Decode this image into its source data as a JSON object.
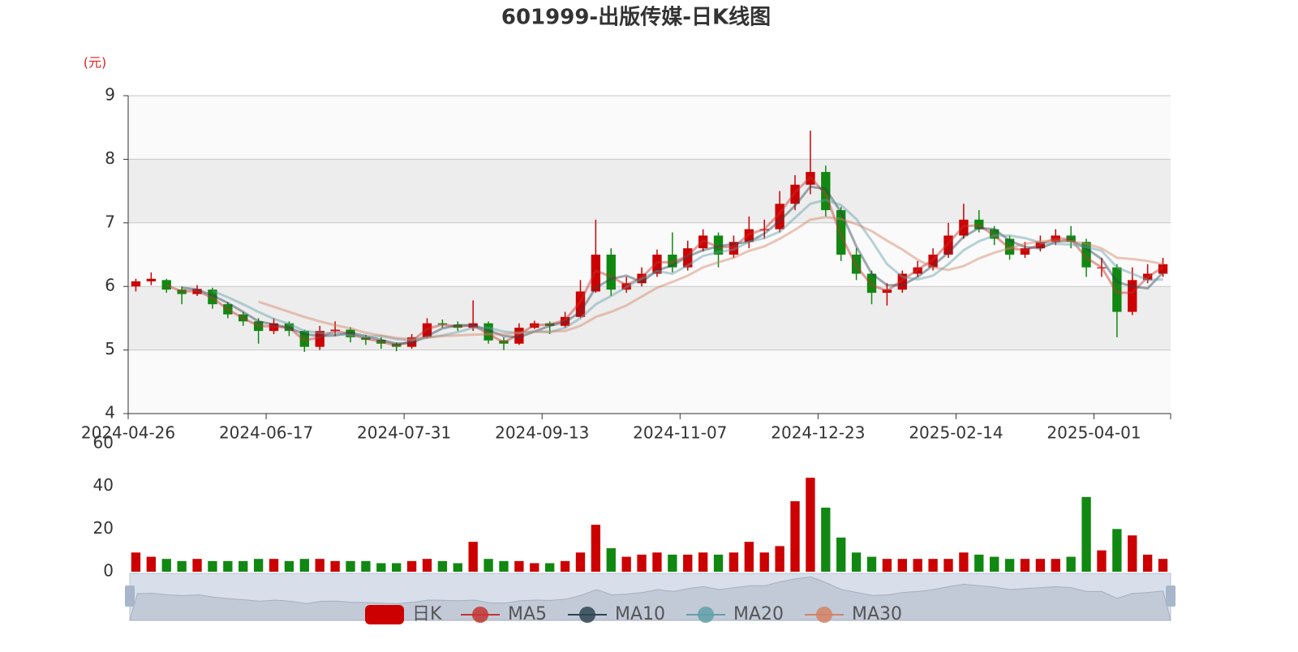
{
  "chart_data": {
    "type": "candlestick",
    "title": "601999-出版传媒-日K线图",
    "y_axis_name": "(元)",
    "candle_name": "日K",
    "up_color": "#cc0000",
    "down_color": "#118811",
    "ylim": [
      4,
      9
    ],
    "yticks": [
      4,
      5,
      6,
      7,
      8,
      9
    ],
    "categories": [
      "2024-04-26",
      null,
      null,
      null,
      null,
      null,
      null,
      null,
      null,
      "2024-06-17",
      null,
      null,
      null,
      null,
      null,
      null,
      null,
      null,
      "2024-07-31",
      null,
      null,
      null,
      null,
      null,
      null,
      null,
      null,
      "2024-09-13",
      null,
      null,
      null,
      null,
      null,
      null,
      null,
      null,
      "2024-11-07",
      null,
      null,
      null,
      null,
      null,
      null,
      null,
      null,
      "2024-12-23",
      null,
      null,
      null,
      null,
      null,
      null,
      null,
      null,
      "2025-02-14",
      null,
      null,
      null,
      null,
      null,
      null,
      null,
      null,
      "2025-04-01",
      null,
      null,
      null,
      null
    ],
    "ohlc": [
      [
        6.0,
        6.08,
        5.92,
        6.12
      ],
      [
        6.08,
        6.12,
        6.02,
        6.22
      ],
      [
        6.1,
        5.95,
        5.9,
        6.12
      ],
      [
        5.95,
        5.88,
        5.72,
        6.0
      ],
      [
        5.88,
        5.96,
        5.85,
        6.02
      ],
      [
        5.95,
        5.72,
        5.65,
        5.98
      ],
      [
        5.72,
        5.56,
        5.5,
        5.75
      ],
      [
        5.56,
        5.45,
        5.38,
        5.6
      ],
      [
        5.45,
        5.3,
        5.1,
        5.5
      ],
      [
        5.3,
        5.42,
        5.25,
        5.5
      ],
      [
        5.42,
        5.3,
        5.22,
        5.45
      ],
      [
        5.3,
        5.05,
        4.97,
        5.32
      ],
      [
        5.05,
        5.3,
        5.0,
        5.38
      ],
      [
        5.3,
        5.32,
        5.22,
        5.45
      ],
      [
        5.32,
        5.2,
        5.12,
        5.36
      ],
      [
        5.2,
        5.16,
        5.08,
        5.24
      ],
      [
        5.16,
        5.1,
        5.02,
        5.2
      ],
      [
        5.1,
        5.05,
        4.98,
        5.12
      ],
      [
        5.05,
        5.2,
        5.02,
        5.25
      ],
      [
        5.2,
        5.42,
        5.18,
        5.5
      ],
      [
        5.42,
        5.4,
        5.35,
        5.48
      ],
      [
        5.4,
        5.35,
        5.3,
        5.45
      ],
      [
        5.35,
        5.42,
        5.3,
        5.78
      ],
      [
        5.42,
        5.15,
        5.1,
        5.45
      ],
      [
        5.15,
        5.1,
        5.0,
        5.2
      ],
      [
        5.1,
        5.35,
        5.08,
        5.42
      ],
      [
        5.35,
        5.42,
        5.33,
        5.46
      ],
      [
        5.42,
        5.38,
        5.25,
        5.45
      ],
      [
        5.38,
        5.52,
        5.35,
        5.6
      ],
      [
        5.52,
        5.92,
        5.5,
        6.1
      ],
      [
        5.92,
        6.5,
        5.9,
        7.05
      ],
      [
        6.5,
        5.95,
        5.85,
        6.6
      ],
      [
        5.95,
        6.05,
        5.9,
        6.15
      ],
      [
        6.05,
        6.2,
        6.0,
        6.3
      ],
      [
        6.2,
        6.5,
        6.15,
        6.58
      ],
      [
        6.5,
        6.3,
        6.22,
        6.85
      ],
      [
        6.3,
        6.6,
        6.25,
        6.72
      ],
      [
        6.6,
        6.8,
        6.55,
        6.9
      ],
      [
        6.8,
        6.5,
        6.3,
        6.85
      ],
      [
        6.5,
        6.7,
        6.45,
        6.8
      ],
      [
        6.7,
        6.9,
        6.6,
        7.1
      ],
      [
        6.9,
        6.9,
        6.75,
        7.05
      ],
      [
        6.9,
        7.3,
        6.85,
        7.5
      ],
      [
        7.3,
        7.6,
        7.2,
        7.75
      ],
      [
        7.6,
        7.8,
        7.45,
        8.45
      ],
      [
        7.8,
        7.2,
        7.1,
        7.9
      ],
      [
        7.2,
        6.5,
        6.4,
        7.25
      ],
      [
        6.5,
        6.2,
        6.1,
        6.6
      ],
      [
        6.2,
        5.9,
        5.72,
        6.25
      ],
      [
        5.9,
        5.95,
        5.7,
        6.05
      ],
      [
        5.95,
        6.2,
        5.9,
        6.25
      ],
      [
        6.2,
        6.3,
        6.15,
        6.4
      ],
      [
        6.3,
        6.5,
        6.25,
        6.6
      ],
      [
        6.5,
        6.8,
        6.45,
        7.0
      ],
      [
        6.8,
        7.05,
        6.75,
        7.3
      ],
      [
        7.05,
        6.9,
        6.85,
        7.2
      ],
      [
        6.9,
        6.75,
        6.65,
        6.95
      ],
      [
        6.75,
        6.5,
        6.42,
        6.8
      ],
      [
        6.5,
        6.6,
        6.45,
        6.7
      ],
      [
        6.6,
        6.7,
        6.55,
        6.8
      ],
      [
        6.7,
        6.8,
        6.65,
        6.9
      ],
      [
        6.8,
        6.7,
        6.6,
        6.95
      ],
      [
        6.7,
        6.3,
        6.15,
        6.75
      ],
      [
        6.3,
        6.3,
        6.15,
        6.45
      ],
      [
        6.3,
        5.6,
        5.2,
        6.35
      ],
      [
        5.6,
        6.1,
        5.55,
        6.3
      ],
      [
        6.1,
        6.2,
        6.05,
        6.35
      ],
      [
        6.2,
        6.35,
        6.15,
        6.45
      ]
    ],
    "series": [
      {
        "name": "MA5",
        "color": "#c23531",
        "values": [
          null,
          null,
          6.02,
          5.92,
          5.93,
          5.82,
          5.64,
          5.5,
          5.38,
          5.37,
          5.35,
          5.15,
          5.2,
          5.3,
          5.25,
          5.18,
          5.13,
          5.07,
          5.14,
          5.33,
          5.4,
          5.37,
          5.39,
          5.25,
          5.12,
          5.25,
          5.39,
          5.4,
          5.47,
          5.76,
          6.25,
          6.15,
          6.02,
          6.14,
          6.38,
          6.38,
          6.48,
          6.72,
          6.62,
          6.62,
          6.82,
          6.9,
          7.15,
          7.48,
          7.72,
          7.45,
          6.8,
          6.32,
          6.02,
          5.93,
          6.1,
          6.26,
          6.42,
          6.68,
          6.95,
          6.96,
          6.8,
          6.6,
          6.57,
          6.66,
          6.76,
          6.74,
          6.45,
          6.3,
          5.9,
          5.9,
          6.15,
          6.3
        ]
      },
      {
        "name": "MA10",
        "color": "#2f4554",
        "values": [
          null,
          null,
          null,
          5.98,
          5.95,
          5.86,
          5.74,
          5.6,
          5.45,
          5.4,
          5.35,
          5.25,
          5.22,
          5.23,
          5.27,
          5.22,
          5.16,
          5.1,
          5.11,
          5.22,
          5.34,
          5.39,
          5.39,
          5.31,
          5.22,
          5.2,
          5.29,
          5.38,
          5.44,
          5.6,
          5.98,
          6.12,
          6.17,
          6.07,
          6.25,
          6.33,
          6.47,
          6.57,
          6.63,
          6.67,
          6.7,
          6.83,
          7.03,
          7.27,
          7.57,
          7.53,
          7.17,
          6.63,
          6.2,
          6.02,
          6.02,
          6.15,
          6.33,
          6.53,
          6.78,
          6.92,
          6.9,
          6.72,
          6.62,
          6.6,
          6.7,
          6.73,
          6.6,
          6.43,
          6.07,
          6.0,
          5.97,
          6.22
        ]
      },
      {
        "name": "MA20",
        "color": "#61a0a8",
        "values": [
          null,
          null,
          null,
          null,
          null,
          5.93,
          5.83,
          5.72,
          5.6,
          5.49,
          5.41,
          5.3,
          5.27,
          5.26,
          5.23,
          5.21,
          5.22,
          5.17,
          5.15,
          5.19,
          5.23,
          5.28,
          5.35,
          5.35,
          5.29,
          5.27,
          5.29,
          5.28,
          5.35,
          5.5,
          5.72,
          5.85,
          5.99,
          6.12,
          6.24,
          6.2,
          6.33,
          6.48,
          6.54,
          6.58,
          6.7,
          6.76,
          6.86,
          7.08,
          7.3,
          7.36,
          7.28,
          7.06,
          6.72,
          6.35,
          6.15,
          6.11,
          6.17,
          6.35,
          6.57,
          6.71,
          6.8,
          6.8,
          6.76,
          6.69,
          6.67,
          6.66,
          6.62,
          6.56,
          6.3,
          6.2,
          6.1,
          6.11
        ]
      },
      {
        "name": "MA30",
        "color": "#d48265",
        "values": [
          null,
          null,
          null,
          null,
          null,
          null,
          null,
          null,
          5.76,
          5.68,
          5.6,
          5.52,
          5.45,
          5.39,
          5.34,
          5.27,
          5.23,
          5.19,
          5.17,
          5.2,
          5.22,
          5.23,
          5.24,
          5.25,
          5.25,
          5.27,
          5.29,
          5.29,
          5.3,
          5.38,
          5.52,
          5.6,
          5.7,
          5.84,
          5.98,
          6.07,
          6.17,
          6.3,
          6.38,
          6.45,
          6.56,
          6.63,
          6.75,
          6.89,
          7.05,
          7.09,
          7.06,
          6.98,
          6.87,
          6.72,
          6.58,
          6.42,
          6.3,
          6.26,
          6.32,
          6.44,
          6.53,
          6.6,
          6.67,
          6.71,
          6.72,
          6.71,
          6.67,
          6.6,
          6.45,
          6.43,
          6.4,
          6.35
        ]
      }
    ],
    "volume": {
      "ylim": [
        0,
        60
      ],
      "yticks": [
        0,
        20,
        40,
        60
      ],
      "values": [
        9,
        7,
        6,
        5,
        6,
        5,
        5,
        5,
        6,
        6,
        5,
        6,
        6,
        5,
        5,
        5,
        4,
        4,
        5,
        6,
        5,
        4,
        14,
        6,
        5,
        5,
        4,
        4,
        5,
        9,
        22,
        11,
        7,
        8,
        9,
        8,
        8,
        9,
        8,
        9,
        14,
        9,
        12,
        33,
        44,
        30,
        16,
        9,
        7,
        6,
        6,
        6,
        6,
        6,
        9,
        8,
        7,
        6,
        6,
        6,
        6,
        7,
        35,
        10,
        20,
        17,
        8,
        6
      ]
    }
  }
}
